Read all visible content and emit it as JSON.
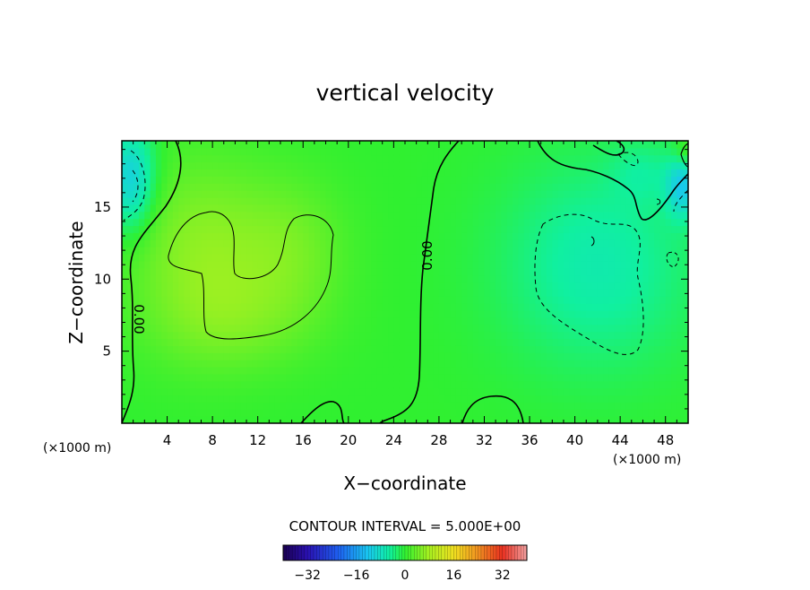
{
  "chart_data": {
    "type": "heatmap",
    "title": "vertical velocity",
    "xlabel": "X−coordinate",
    "ylabel": "Z−coordinate",
    "x_unit": "(×1000 m)",
    "z_unit": "(×1000 m)",
    "xlim": [
      0,
      50
    ],
    "ylim": [
      0,
      19.6
    ],
    "x_ticks": [
      4,
      8,
      12,
      16,
      20,
      24,
      28,
      32,
      36,
      40,
      44,
      48
    ],
    "y_ticks": [
      5,
      10,
      15
    ],
    "contour_interval_text": "CONTOUR INTERVAL = 5.000E+00",
    "contour_interval": 5,
    "contour_labels": [
      {
        "text": "0.00",
        "x": 26.5,
        "z": 11.5,
        "rotate": -90
      },
      {
        "text": "0.00",
        "x": 1.2,
        "z": 7.7,
        "rotate": 90
      }
    ],
    "colorbar": {
      "min": -40,
      "max": 40,
      "ticks": [
        -32,
        -16,
        0,
        16,
        32
      ],
      "tick_labels": [
        "−32",
        "−16",
        "0",
        "16",
        "32"
      ]
    },
    "field_blobs": [
      {
        "x": 7,
        "z": 12,
        "sx": 4.5,
        "sz": 4.5,
        "v": 6
      },
      {
        "x": 15,
        "z": 12,
        "sx": 3.5,
        "sz": 3.5,
        "v": 4
      },
      {
        "x": 10,
        "z": 7,
        "sx": 5,
        "sz": 2.5,
        "v": 3
      },
      {
        "x": 42,
        "z": 11,
        "sx": 6,
        "sz": 5,
        "v": -6
      },
      {
        "x": 0.8,
        "z": 17,
        "sx": 1.5,
        "sz": 2.5,
        "v": -11
      },
      {
        "x": 49.5,
        "z": 16.5,
        "sx": 1,
        "sz": 1.5,
        "v": -10
      },
      {
        "x": 46,
        "z": 17.5,
        "sx": 2,
        "sz": 1.5,
        "v": -3
      },
      {
        "x": 49.8,
        "z": 18.8,
        "sx": 0.8,
        "sz": 0.8,
        "v": 4
      }
    ],
    "colors": {
      "contour": "#000000",
      "frame": "#000000"
    }
  }
}
